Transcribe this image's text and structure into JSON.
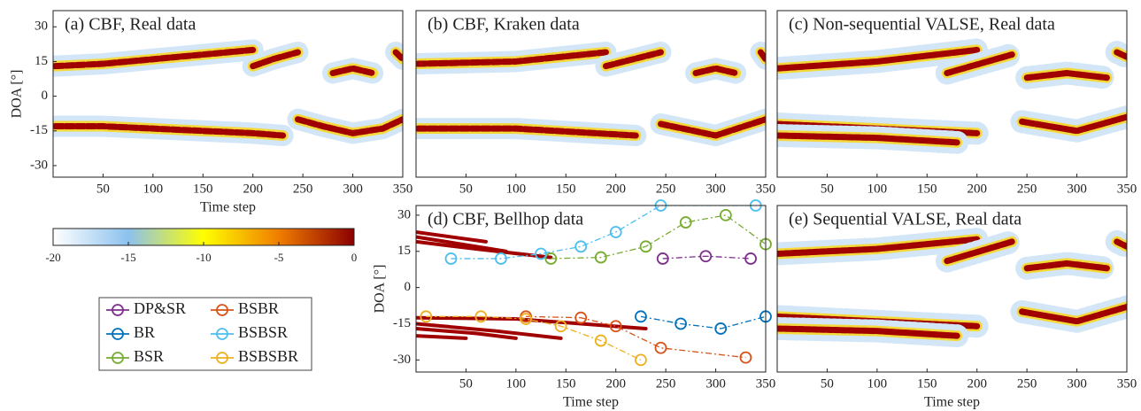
{
  "chart_data": [
    {
      "type": "heatmap",
      "title": "(a) CBF, Real data",
      "xlabel": "Time step",
      "ylabel": "DOA [°]",
      "color": "#a00000",
      "xlim": [
        0,
        350
      ],
      "ylim": [
        -35,
        37
      ],
      "xticks": [
        50,
        100,
        150,
        200,
        250,
        300,
        350
      ],
      "yticks": [
        -30,
        -15,
        0,
        15,
        30
      ],
      "ridges": [
        {
          "x": [
            2,
            50,
            100,
            150,
            200
          ],
          "values": [
            13,
            14,
            16,
            18,
            20
          ]
        },
        {
          "x": [
            200,
            220,
            245
          ],
          "values": [
            13,
            16,
            19
          ]
        },
        {
          "x": [
            280,
            300,
            320
          ],
          "values": [
            10,
            12,
            10
          ]
        },
        {
          "x": [
            343,
            350
          ],
          "values": [
            19,
            16
          ]
        },
        {
          "x": [
            2,
            50,
            100,
            150,
            200,
            230
          ],
          "values": [
            -13,
            -13,
            -14,
            -15,
            -16,
            -17
          ]
        },
        {
          "x": [
            245,
            270,
            300,
            330,
            350
          ],
          "values": [
            -10,
            -13,
            -16,
            -14,
            -10
          ]
        }
      ]
    },
    {
      "type": "heatmap",
      "title": "(b) CBF, Kraken data",
      "color": "#a00000",
      "xlim": [
        0,
        350
      ],
      "ylim": [
        -35,
        37
      ],
      "xticks": [
        50,
        100,
        150,
        200,
        250,
        300,
        350
      ],
      "ridges": [
        {
          "x": [
            2,
            100,
            190
          ],
          "values": [
            14,
            15,
            19
          ]
        },
        {
          "x": [
            190,
            245
          ],
          "values": [
            13,
            19
          ]
        },
        {
          "x": [
            280,
            300,
            320
          ],
          "values": [
            10,
            12,
            10
          ]
        },
        {
          "x": [
            345,
            350
          ],
          "values": [
            19,
            16
          ]
        },
        {
          "x": [
            2,
            100,
            220
          ],
          "values": [
            -14,
            -14,
            -17
          ]
        },
        {
          "x": [
            245,
            300,
            350
          ],
          "values": [
            -12,
            -17,
            -10
          ]
        }
      ]
    },
    {
      "type": "scatter-heatmap",
      "title": "(c) Non-sequential VALSE, Real data",
      "color": "#a00000",
      "xlim": [
        0,
        350
      ],
      "ylim": [
        -35,
        37
      ],
      "xticks": [
        50,
        100,
        150,
        200,
        250,
        300,
        350
      ],
      "ridges": [
        {
          "x": [
            0,
            100,
            200
          ],
          "values": [
            12,
            15,
            20
          ]
        },
        {
          "x": [
            170,
            235
          ],
          "values": [
            10,
            18
          ]
        },
        {
          "x": [
            250,
            290,
            330
          ],
          "values": [
            8,
            10,
            8
          ]
        },
        {
          "x": [
            340,
            350
          ],
          "values": [
            19,
            17
          ]
        },
        {
          "x": [
            0,
            100,
            200
          ],
          "values": [
            -12,
            -14,
            -16
          ]
        },
        {
          "x": [
            0,
            100,
            180
          ],
          "values": [
            -17,
            -18,
            -20
          ]
        },
        {
          "x": [
            245,
            300,
            350
          ],
          "values": [
            -11,
            -15,
            -9
          ]
        }
      ]
    },
    {
      "type": "line",
      "title": "(d) CBF, Bellhop data",
      "xlabel": "Time step",
      "ylabel": "DOA [°]",
      "color": "#a00000",
      "xlim": [
        0,
        350
      ],
      "ylim": [
        -35,
        34
      ],
      "xticks": [
        50,
        100,
        150,
        200,
        250,
        300,
        350
      ],
      "yticks": [
        -30,
        -15,
        0,
        15,
        30
      ],
      "ridges": [
        {
          "x": [
            0,
            60,
            135
          ],
          "values": [
            19,
            16,
            12.5
          ]
        },
        {
          "x": [
            0,
            45,
            90
          ],
          "values": [
            21,
            18,
            15
          ]
        },
        {
          "x": [
            0,
            35,
            70
          ],
          "values": [
            23,
            21,
            19
          ]
        },
        {
          "x": [
            0,
            100,
            230
          ],
          "values": [
            -12.5,
            -13,
            -17
          ]
        },
        {
          "x": [
            0,
            80,
            145
          ],
          "values": [
            -15,
            -18,
            -21
          ]
        },
        {
          "x": [
            0,
            60,
            100
          ],
          "values": [
            -17,
            -19,
            -21
          ]
        },
        {
          "x": [
            0,
            50
          ],
          "values": [
            -20,
            -21
          ]
        }
      ],
      "series": [
        {
          "name": "DP&SR",
          "color": "#7e2f8e",
          "x": [
            247,
            290,
            335
          ],
          "values": [
            12,
            13,
            12
          ]
        },
        {
          "name": "BR",
          "color": "#0072bd",
          "x": [
            225,
            265,
            305,
            350
          ],
          "values": [
            -12,
            -15,
            -17,
            -12
          ]
        },
        {
          "name": "BSR",
          "color": "#77ac30",
          "x": [
            135,
            185,
            230,
            270,
            310,
            350
          ],
          "values": [
            12,
            12.5,
            17,
            27,
            30,
            18
          ]
        },
        {
          "name": "BSBR",
          "color": "#d95319",
          "x": [
            110,
            165,
            200,
            245,
            330
          ],
          "values": [
            -12,
            -12.5,
            -16,
            -25,
            -29
          ]
        },
        {
          "name": "BSBSR",
          "color": "#4dbeee",
          "x": [
            35,
            85,
            125,
            165,
            200,
            245,
            340
          ],
          "values": [
            12,
            12,
            14,
            17,
            23,
            34,
            34
          ]
        },
        {
          "name": "BSBSBR",
          "color": "#edb120",
          "x": [
            10,
            65,
            110,
            145,
            185,
            225
          ],
          "values": [
            -12,
            -12,
            -13,
            -16,
            -22,
            -30
          ]
        }
      ]
    },
    {
      "type": "scatter-heatmap",
      "title": "(e) Sequential VALSE, Real data",
      "xlabel": "Time step",
      "color": "#a00000",
      "xlim": [
        0,
        350
      ],
      "ylim": [
        -35,
        34
      ],
      "xticks": [
        50,
        100,
        150,
        200,
        250,
        300,
        350
      ],
      "ridges": [
        {
          "x": [
            0,
            100,
            200
          ],
          "values": [
            14,
            16,
            20
          ]
        },
        {
          "x": [
            170,
            235
          ],
          "values": [
            11,
            19
          ]
        },
        {
          "x": [
            250,
            290,
            330
          ],
          "values": [
            8,
            10,
            8
          ]
        },
        {
          "x": [
            340,
            350
          ],
          "values": [
            19,
            17
          ]
        },
        {
          "x": [
            0,
            100,
            200
          ],
          "values": [
            -12,
            -14,
            -16
          ]
        },
        {
          "x": [
            0,
            100,
            180
          ],
          "values": [
            -17,
            -18,
            -20
          ]
        },
        {
          "x": [
            245,
            300,
            350
          ],
          "values": [
            -10,
            -14,
            -8
          ]
        }
      ]
    },
    {
      "type": "colorbar",
      "xlim": [
        -20,
        0
      ],
      "xticks": [
        -20,
        -15,
        -10,
        -5,
        0
      ],
      "colors": [
        "#ffffff",
        "#8cc1ef",
        "#ffff00",
        "#f07d00",
        "#8b0000"
      ]
    }
  ]
}
